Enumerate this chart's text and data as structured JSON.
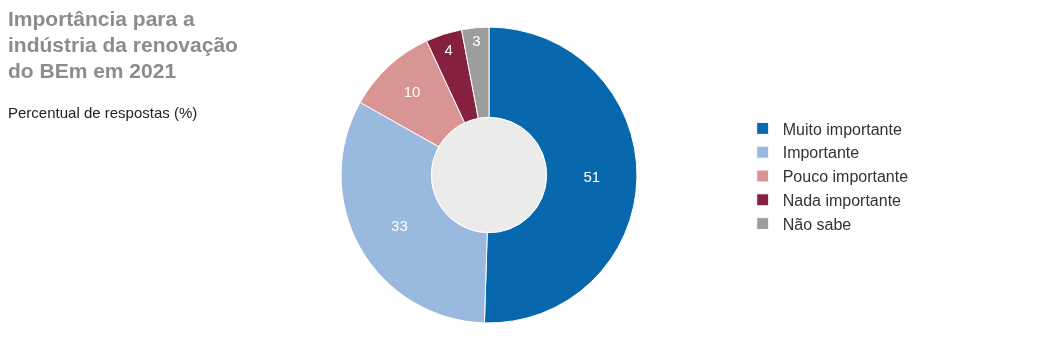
{
  "chart_data": {
    "type": "donut",
    "title": "Importância para a indústria da renovação do BEm em 2021",
    "subtitle": "Percentual de respostas (%)",
    "categories": [
      "Muito importante",
      "Importante",
      "Pouco importante",
      "Nada importante",
      "Não sabe"
    ],
    "values": [
      51,
      33,
      10,
      4,
      3
    ],
    "colors": [
      "#0868ae",
      "#9ab9df",
      "#d99594",
      "#86203f",
      "#9d9d9d"
    ],
    "data_labels": true,
    "legend": "right"
  }
}
